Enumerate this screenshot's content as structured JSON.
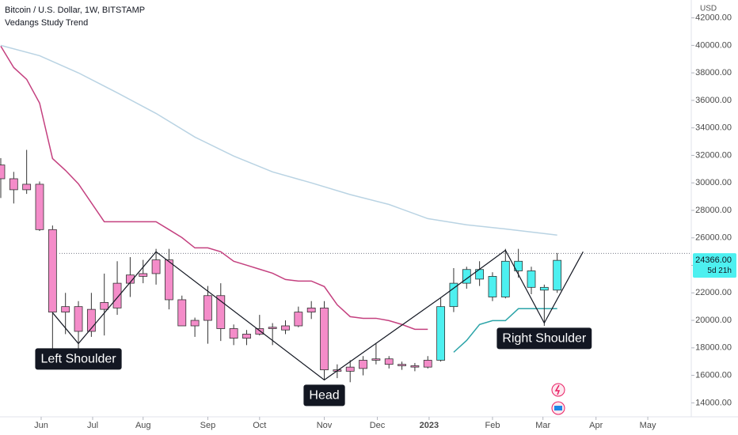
{
  "chart_data": {
    "type": "candlestick",
    "title": "Bitcoin / U.S. Dollar, 1W, BITSTAMP",
    "subtitle": "Vedangs Study Trend",
    "unit": "USD",
    "x": [
      0,
      1,
      2,
      3,
      4,
      5,
      6,
      7,
      8,
      9,
      10,
      11,
      12,
      13,
      14,
      15,
      16,
      17,
      18,
      19,
      20,
      21,
      22,
      23,
      24,
      25,
      26,
      27,
      28,
      29,
      30,
      31,
      32,
      33,
      34,
      35,
      36,
      37,
      38,
      39,
      40,
      41,
      42,
      43
    ],
    "open": [
      31300,
      30300,
      29500,
      29900,
      26600,
      20600,
      21000,
      19200,
      20800,
      20900,
      22700,
      23200,
      23400,
      24400,
      21500,
      19600,
      20000,
      21800,
      19400,
      18700,
      19000,
      19400,
      19300,
      19600,
      20600,
      20900,
      16400,
      16300,
      16500,
      17100,
      17200,
      16800,
      16700,
      16600,
      17100,
      21000,
      22700,
      23700,
      23200,
      21700,
      24300,
      23600,
      22400,
      22200
    ],
    "high": [
      31800,
      30800,
      32400,
      30100,
      26900,
      22000,
      21400,
      22000,
      23400,
      24300,
      24600,
      24400,
      25200,
      25200,
      21800,
      20200,
      22500,
      22700,
      19700,
      19300,
      20400,
      19800,
      20000,
      21000,
      21400,
      21400,
      16800,
      17100,
      17400,
      18300,
      17400,
      17000,
      16900,
      17400,
      21600,
      23800,
      23900,
      24300,
      23500,
      25200,
      25200,
      23900,
      22600,
      24900
    ],
    "low": [
      28900,
      28500,
      29200,
      26500,
      17600,
      19000,
      17600,
      18800,
      18900,
      20400,
      21700,
      22700,
      22600,
      20800,
      19600,
      18800,
      18300,
      18500,
      18200,
      18200,
      18900,
      18200,
      19000,
      19500,
      20100,
      15700,
      15800,
      15500,
      16000,
      16800,
      16500,
      16400,
      16300,
      16500,
      17000,
      20600,
      22300,
      22500,
      21400,
      21600,
      23100,
      21900,
      19600,
      22000
    ],
    "close": [
      30300,
      29500,
      29900,
      26600,
      20600,
      21000,
      19200,
      20800,
      21300,
      22700,
      23300,
      23400,
      24400,
      21500,
      19600,
      20000,
      21800,
      19400,
      18700,
      19000,
      19400,
      19500,
      19600,
      20600,
      20900,
      16400,
      16300,
      16600,
      17100,
      17200,
      16800,
      16700,
      16600,
      17100,
      21000,
      22700,
      23700,
      23000,
      21700,
      24300,
      23600,
      22400,
      22200,
      24366
    ],
    "colors": [
      "#f48cc9",
      "#f48cc9",
      "#f48cc9",
      "#f48cc9",
      "#f48cc9",
      "#f48cc9",
      "#f48cc9",
      "#f48cc9",
      "#f48cc9",
      "#f48cc9",
      "#f48cc9",
      "#f48cc9",
      "#f48cc9",
      "#f48cc9",
      "#f48cc9",
      "#f48cc9",
      "#f48cc9",
      "#f48cc9",
      "#f48cc9",
      "#f48cc9",
      "#f48cc9",
      "#f48cc9",
      "#f48cc9",
      "#f48cc9",
      "#f48cc9",
      "#f48cc9",
      "#f48cc9",
      "#f48cc9",
      "#f48cc9",
      "#f48cc9",
      "#f48cc9",
      "#f48cc9",
      "#f48cc9",
      "#f48cc9",
      "#4df0f0",
      "#4df0f0",
      "#4df0f0",
      "#4df0f0",
      "#4df0f0",
      "#4df0f0",
      "#4df0f0",
      "#4df0f0",
      "#4df0f0",
      "#4df0f0"
    ],
    "border_color": "#333333",
    "lines": [
      {
        "color": "#b9d3e3",
        "x": [
          0,
          3,
          6,
          9,
          12,
          15,
          18,
          21,
          24,
          27,
          30,
          33,
          36,
          39,
          43
        ],
        "values": [
          40000,
          39250,
          38000,
          36550,
          35050,
          33330,
          31950,
          30800,
          30000,
          29150,
          28430,
          27400,
          26950,
          26650,
          26200
        ]
      },
      {
        "color": "#c4407f",
        "x": [
          0,
          1,
          2,
          3,
          4,
          5,
          6,
          7,
          8,
          9,
          10,
          11,
          12,
          13,
          14,
          15,
          16,
          17,
          18,
          19,
          20,
          21,
          22,
          23,
          24,
          25,
          26,
          27,
          28,
          29,
          30,
          31,
          32,
          33
        ],
        "values": [
          39940,
          38390,
          37530,
          35800,
          31770,
          30910,
          29930,
          28550,
          27170,
          27170,
          27170,
          27170,
          27170,
          26600,
          26020,
          25270,
          25270,
          24990,
          24300,
          24010,
          23720,
          23430,
          22970,
          22860,
          22860,
          22460,
          21130,
          20270,
          20150,
          20150,
          19980,
          19700,
          19350,
          19350
        ]
      },
      {
        "color": "#2ba4a8",
        "x": [
          35,
          36,
          37,
          38,
          39,
          40,
          41,
          42,
          43
        ],
        "values": [
          17680,
          18540,
          19700,
          19980,
          19980,
          20850,
          20850,
          20850,
          20850
        ]
      }
    ],
    "pattern": {
      "color": "#131722",
      "x": [
        4,
        6,
        12,
        25,
        34,
        39,
        42,
        45
      ],
      "values": [
        20560,
        18310,
        24990,
        15670,
        21650,
        25100,
        19810,
        24990
      ],
      "labels": [
        null,
        "Left Shoulder",
        null,
        "Head",
        null,
        null,
        "Right Shoulder",
        null
      ]
    },
    "level": 24870,
    "last_price": {
      "value": 24366,
      "label": "24366.00"
    },
    "countdown": "5d 21h",
    "xlim": [
      -0.06,
      53.3
    ],
    "ylim": [
      13100,
      43300
    ],
    "xticks": [
      {
        "value": 3.12,
        "label": "Jun"
      },
      {
        "value": 7.1,
        "label": "Jul"
      },
      {
        "value": 11.0,
        "label": "Aug"
      },
      {
        "value": 16.0,
        "label": "Sep"
      },
      {
        "value": 20.0,
        "label": "Oct"
      },
      {
        "value": 25.0,
        "label": "Nov"
      },
      {
        "value": 29.1,
        "label": "Dec"
      },
      {
        "value": 33.1,
        "label": "2023"
      },
      {
        "value": 38.0,
        "label": "Feb"
      },
      {
        "value": 41.9,
        "label": "Mar"
      },
      {
        "value": 46.0,
        "label": "Apr"
      },
      {
        "value": 50.0,
        "label": "May"
      }
    ],
    "yticks": [
      {
        "value": 14000,
        "label": "14000.00"
      },
      {
        "value": 16000,
        "label": "16000.00"
      },
      {
        "value": 18000,
        "label": "18000.00"
      },
      {
        "value": 20000,
        "label": "20000.00"
      },
      {
        "value": 22000,
        "label": "22000.00"
      },
      {
        "value": 24000,
        "label": "24000.00"
      },
      {
        "value": 26000,
        "label": "26000.00"
      },
      {
        "value": 28000,
        "label": "28000.00"
      },
      {
        "value": 30000,
        "label": "30000.00"
      },
      {
        "value": 32000,
        "label": "32000.00"
      },
      {
        "value": 34000,
        "label": "34000.00"
      },
      {
        "value": 36000,
        "label": "36000.00"
      },
      {
        "value": 38000,
        "label": "38000.00"
      },
      {
        "value": 40000,
        "label": "40000.00"
      },
      {
        "value": 42000,
        "label": "42000.00"
      }
    ]
  }
}
